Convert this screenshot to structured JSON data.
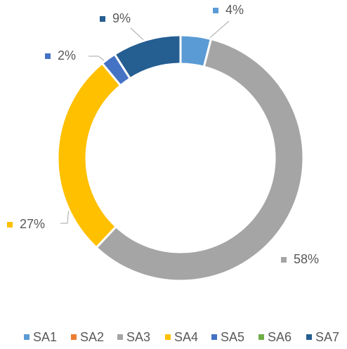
{
  "chart_data": {
    "type": "pie",
    "donut": true,
    "categories": [
      "SA1",
      "SA2",
      "SA3",
      "SA4",
      "SA5",
      "SA6",
      "SA7"
    ],
    "values": [
      4,
      0,
      58,
      27,
      2,
      0,
      9
    ],
    "value_labels": [
      "4%",
      null,
      "58%",
      "27%",
      "2%",
      null,
      "9%"
    ],
    "colors": [
      "#5b9bd5",
      "#ed7d31",
      "#a5a5a5",
      "#ffc000",
      "#4472c4",
      "#70ad47",
      "#255e91"
    ],
    "legend": "bottom"
  }
}
